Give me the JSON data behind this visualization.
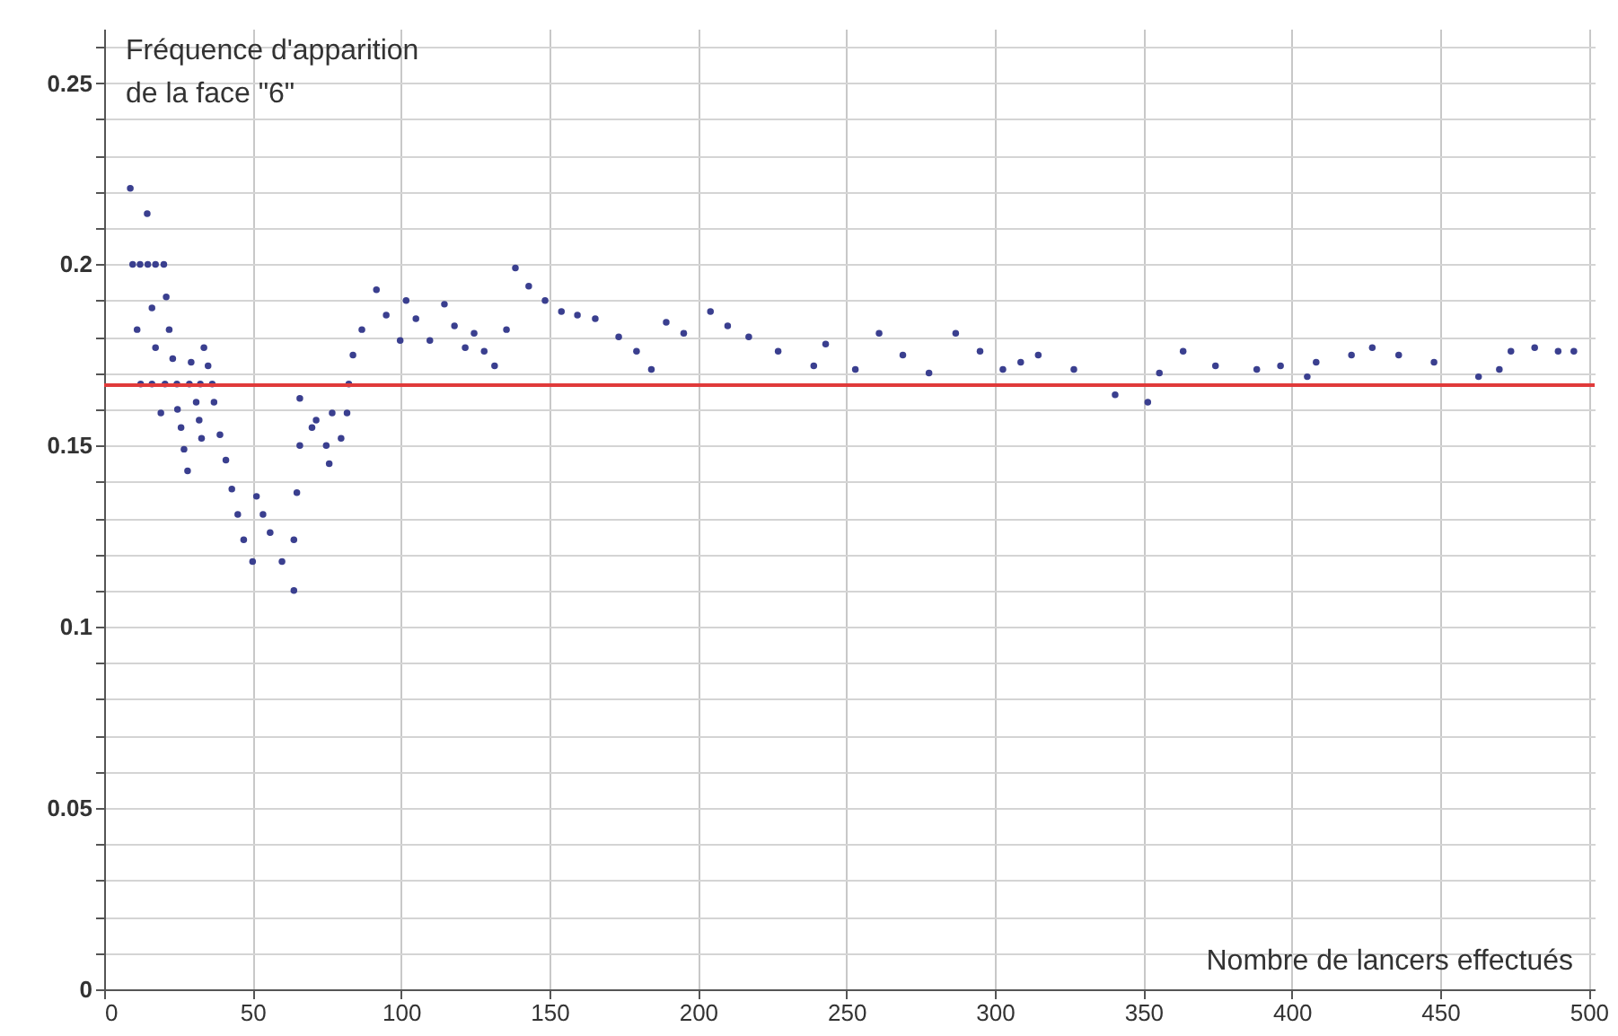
{
  "chart_data": {
    "type": "scatter",
    "xlabel": "Nombre de lancers effectués",
    "ylabel": "Fréquence d'apparition\n de la face \"6\"",
    "x": [
      8.8,
      9.6,
      11.1,
      12.1,
      12.3,
      14.5,
      14.7,
      16.1,
      16.1,
      17.3,
      17.3,
      19.1,
      20.1,
      20.5,
      20.9,
      21.9,
      23.1,
      24.5,
      24.7,
      25.9,
      26.9,
      28.1,
      28.7,
      29.3,
      31,
      32,
      32.4,
      32.8,
      33.6,
      35,
      36.4,
      37,
      39,
      41,
      43,
      45,
      47,
      50,
      51.3,
      53.5,
      55.9,
      59.9,
      63.9,
      63.9,
      64.9,
      65.9,
      65.9,
      70,
      75.8,
      71.4,
      74.8,
      76.8,
      79.8,
      81.8,
      82.4,
      83.8,
      86.8,
      91.7,
      95,
      99.7,
      101.7,
      105,
      109.7,
      114.6,
      118,
      121.6,
      124.6,
      128,
      131.5,
      135.5,
      138.5,
      143,
      148.5,
      154,
      159.4,
      165.4,
      173.3,
      179.3,
      184.3,
      189.3,
      195.2,
      204.2,
      210,
      217.1,
      227,
      239,
      243,
      253,
      261,
      269,
      277.8,
      286.8,
      295,
      302.7,
      308.7,
      314.6,
      326.6,
      340.5,
      351.5,
      355.4,
      363.4,
      374.3,
      388.2,
      396.2,
      405.2,
      408.2,
      420.1,
      427.1,
      436,
      447.9,
      462.9,
      469.9,
      473.8,
      481.8,
      489.7,
      495
    ],
    "series": [
      {
        "color": "#3a3f8f",
        "values": [
          0.221,
          0.2,
          0.182,
          0.2,
          0.167,
          0.214,
          0.2,
          0.188,
          0.167,
          0.2,
          0.177,
          0.159,
          0.2,
          0.167,
          0.191,
          0.182,
          0.174,
          0.167,
          0.16,
          0.155,
          0.149,
          0.143,
          0.167,
          0.173,
          0.162,
          0.157,
          0.167,
          0.152,
          0.177,
          0.172,
          0.167,
          0.162,
          0.153,
          0.146,
          0.138,
          0.131,
          0.124,
          0.118,
          0.136,
          0.131,
          0.126,
          0.118,
          0.11,
          0.124,
          0.137,
          0.15,
          0.163,
          0.155,
          0.145,
          0.157,
          0.15,
          0.159,
          0.152,
          0.159,
          0.167,
          0.175,
          0.182,
          0.193,
          0.186,
          0.179,
          0.19,
          0.185,
          0.179,
          0.189,
          0.183,
          0.177,
          0.181,
          0.176,
          0.172,
          0.182,
          0.199,
          0.194,
          0.19,
          0.187,
          0.186,
          0.185,
          0.18,
          0.176,
          0.171,
          0.184,
          0.181,
          0.187,
          0.183,
          0.18,
          0.176,
          0.172,
          0.178,
          0.171,
          0.181,
          0.175,
          0.17,
          0.181,
          0.176,
          0.171,
          0.173,
          0.175,
          0.171,
          0.164,
          0.162,
          0.17,
          0.176,
          0.172,
          0.171,
          0.172,
          0.169,
          0.173,
          0.175,
          0.177,
          0.175,
          0.173,
          0.169,
          0.171,
          0.176,
          0.177,
          0.176,
          0.176
        ]
      }
    ],
    "xlim": [
      0,
      502
    ],
    "xticks": [
      0,
      50,
      100,
      150,
      200,
      250,
      300,
      350,
      400,
      450,
      500
    ],
    "ylim": [
      0,
      0.265
    ],
    "yticks": [
      0,
      {
        "value": 0.01,
        "label": null
      },
      {
        "value": 0.02,
        "label": null
      },
      {
        "value": 0.03,
        "label": null
      },
      {
        "value": 0.04,
        "label": null
      },
      0.05,
      {
        "value": 0.06,
        "label": null
      },
      {
        "value": 0.07,
        "label": null
      },
      {
        "value": 0.08,
        "label": null
      },
      {
        "value": 0.09,
        "label": null
      },
      0.1,
      {
        "value": 0.11,
        "label": null
      },
      {
        "value": 0.12,
        "label": null
      },
      {
        "value": 0.13,
        "label": null
      },
      {
        "value": 0.14,
        "label": null
      },
      0.15,
      {
        "value": 0.16,
        "label": null
      },
      {
        "value": 0.17,
        "label": null
      },
      {
        "value": 0.18,
        "label": null
      },
      {
        "value": 0.19,
        "label": null
      },
      0.2,
      {
        "value": 0.21,
        "label": null
      },
      {
        "value": 0.22,
        "label": null
      },
      {
        "value": 0.23,
        "label": null
      },
      {
        "value": 0.24,
        "label": null
      },
      0.25,
      {
        "value": 0.26,
        "label": null
      }
    ],
    "ref_lines": [
      {
        "axis": "y",
        "value": 0.1667,
        "color": "#e03a3a"
      }
    ],
    "grid": true,
    "marker": "circle"
  }
}
